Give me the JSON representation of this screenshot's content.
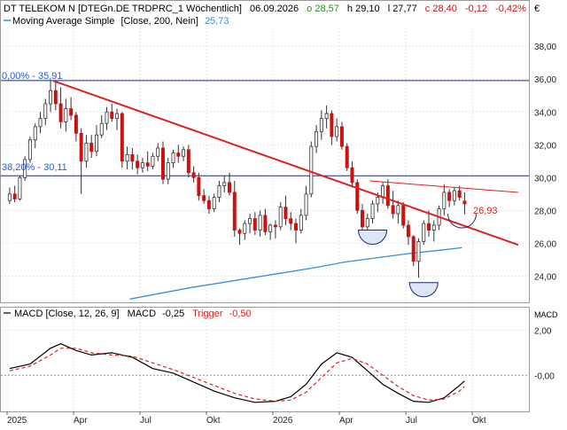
{
  "header": {
    "title": "DT TELEKOM N [DTEGn.DE TRDPRC_1 Wöchentlich]",
    "date": "06.09.2026",
    "open": "o 28,57",
    "high": "h 29,10",
    "low": "l 27,77",
    "close": "c 28,40",
    "change": "-0,12",
    "change_pct": "-0,42%",
    "currency": "€",
    "indicator": "Moving Average Simple",
    "indicator_params": "[Close, 200, Nein]",
    "indicator_value": "25,73"
  },
  "colors": {
    "up": "#2a8a2a",
    "down": "#cc1111",
    "ma": "#3b8fd6",
    "trendline": "#dd2222",
    "hline": "#1f2a6b",
    "macd": "#000000",
    "trigger": "#dd2222",
    "label_blue": "#2a5bd7"
  },
  "chart_data": [
    {
      "type": "candlestick",
      "title": "DT TELEKOM N [DTEGn.DE TRDPRC_1 Wöchentlich]",
      "ylim": [
        22.4,
        39.2
      ],
      "yticks": [
        "24,00",
        "26,00",
        "28,00",
        "30,00",
        "32,00",
        "34,00",
        "36,00",
        "38,00"
      ],
      "ytick_values": [
        24,
        26,
        28,
        30,
        32,
        34,
        36,
        38
      ],
      "xticks": [
        "2025",
        "Apr",
        "Jul",
        "Okt",
        "2026",
        "Apr",
        "Jul",
        "Okt"
      ],
      "xtick_week_index": [
        0,
        13,
        26,
        39,
        52,
        65,
        78,
        91
      ],
      "n_weeks": 100,
      "candles": [
        [
          28.6,
          29.4,
          28.4,
          29.0
        ],
        [
          29.0,
          29.5,
          28.5,
          28.7
        ],
        [
          28.7,
          30.1,
          28.6,
          30.0
        ],
        [
          30.0,
          31.3,
          29.8,
          31.1
        ],
        [
          31.1,
          32.5,
          30.9,
          32.3
        ],
        [
          32.3,
          33.3,
          31.8,
          33.1
        ],
        [
          33.1,
          34.0,
          32.7,
          33.6
        ],
        [
          33.6,
          34.8,
          33.2,
          34.5
        ],
        [
          34.5,
          35.9,
          34.0,
          35.3
        ],
        [
          35.3,
          35.9,
          34.1,
          34.5
        ],
        [
          34.5,
          35.5,
          33.0,
          33.4
        ],
        [
          33.4,
          34.8,
          32.8,
          34.2
        ],
        [
          34.2,
          34.9,
          33.5,
          33.8
        ],
        [
          33.8,
          34.0,
          32.2,
          32.7
        ],
        [
          32.7,
          33.0,
          29.0,
          31.0
        ],
        [
          31.0,
          32.6,
          30.6,
          32.1
        ],
        [
          32.1,
          32.6,
          31.2,
          31.6
        ],
        [
          31.6,
          33.2,
          31.3,
          32.6
        ],
        [
          32.6,
          33.8,
          32.4,
          33.3
        ],
        [
          33.3,
          34.3,
          32.9,
          34.0
        ],
        [
          34.0,
          34.5,
          33.4,
          33.6
        ],
        [
          33.6,
          34.2,
          32.9,
          33.9
        ],
        [
          33.9,
          34.0,
          30.6,
          31.0
        ],
        [
          31.0,
          31.9,
          30.5,
          31.4
        ],
        [
          31.4,
          31.8,
          30.5,
          31.0
        ],
        [
          31.0,
          31.4,
          30.2,
          30.6
        ],
        [
          30.6,
          31.2,
          30.3,
          30.9
        ],
        [
          30.9,
          31.6,
          30.4,
          30.7
        ],
        [
          30.7,
          31.5,
          30.5,
          31.3
        ],
        [
          31.3,
          32.1,
          31.0,
          31.8
        ],
        [
          31.8,
          32.2,
          29.6,
          29.9
        ],
        [
          29.9,
          31.2,
          29.6,
          30.9
        ],
        [
          30.9,
          31.7,
          30.6,
          31.5
        ],
        [
          31.5,
          32.0,
          30.9,
          31.3
        ],
        [
          31.3,
          31.9,
          31.0,
          31.7
        ],
        [
          31.7,
          32.0,
          30.0,
          30.3
        ],
        [
          30.3,
          30.7,
          29.7,
          30.0
        ],
        [
          30.0,
          30.3,
          28.6,
          28.9
        ],
        [
          28.9,
          29.3,
          28.4,
          28.6
        ],
        [
          28.6,
          28.9,
          27.8,
          28.1
        ],
        [
          28.1,
          29.0,
          27.9,
          28.8
        ],
        [
          28.8,
          29.8,
          28.5,
          29.5
        ],
        [
          29.5,
          30.1,
          29.1,
          29.7
        ],
        [
          29.7,
          30.3,
          28.9,
          29.1
        ],
        [
          29.1,
          29.8,
          26.4,
          26.8
        ],
        [
          26.8,
          26.9,
          25.9,
          26.6
        ],
        [
          26.6,
          27.4,
          26.2,
          27.2
        ],
        [
          27.2,
          27.8,
          26.6,
          27.5
        ],
        [
          27.5,
          27.9,
          26.5,
          26.8
        ],
        [
          26.8,
          28.0,
          26.4,
          27.7
        ],
        [
          27.7,
          28.1,
          26.5,
          26.7
        ],
        [
          26.7,
          27.2,
          26.2,
          27.1
        ],
        [
          27.1,
          27.4,
          26.3,
          27.0
        ],
        [
          27.0,
          28.5,
          26.8,
          28.2
        ],
        [
          28.2,
          28.9,
          27.1,
          27.5
        ],
        [
          27.5,
          27.9,
          26.8,
          27.2
        ],
        [
          27.2,
          27.5,
          26.0,
          26.8
        ],
        [
          26.8,
          28.1,
          26.6,
          27.7
        ],
        [
          27.7,
          29.5,
          27.4,
          29.0
        ],
        [
          29.0,
          32.2,
          28.8,
          31.9
        ],
        [
          31.9,
          33.2,
          31.5,
          32.8
        ],
        [
          32.8,
          34.1,
          32.3,
          33.6
        ],
        [
          33.6,
          34.4,
          33.0,
          33.9
        ],
        [
          33.9,
          34.1,
          32.0,
          32.5
        ],
        [
          32.5,
          33.6,
          32.2,
          33.1
        ],
        [
          33.1,
          33.4,
          31.7,
          31.9
        ],
        [
          31.9,
          32.1,
          30.4,
          30.6
        ],
        [
          30.6,
          31.0,
          29.4,
          29.7
        ],
        [
          29.7,
          29.9,
          27.8,
          28.0
        ],
        [
          28.0,
          28.4,
          26.7,
          27.0
        ],
        [
          27.0,
          27.8,
          26.7,
          27.5
        ],
        [
          27.5,
          28.6,
          27.2,
          28.4
        ],
        [
          28.4,
          29.1,
          27.9,
          28.8
        ],
        [
          28.8,
          29.7,
          28.4,
          29.5
        ],
        [
          29.5,
          29.9,
          28.1,
          28.3
        ],
        [
          28.3,
          29.2,
          27.5,
          27.8
        ],
        [
          27.8,
          28.6,
          27.2,
          28.3
        ],
        [
          28.3,
          28.5,
          26.9,
          27.1
        ],
        [
          27.1,
          27.4,
          25.9,
          26.4
        ],
        [
          26.4,
          26.5,
          24.6,
          24.9
        ],
        [
          24.9,
          26.3,
          23.9,
          26.1
        ],
        [
          26.1,
          27.4,
          25.9,
          27.2
        ],
        [
          27.2,
          28.0,
          26.4,
          26.8
        ],
        [
          26.8,
          27.4,
          26.1,
          27.1
        ],
        [
          27.1,
          28.3,
          26.8,
          28.1
        ],
        [
          28.1,
          29.6,
          27.7,
          29.1
        ],
        [
          29.1,
          29.3,
          28.2,
          28.6
        ],
        [
          28.6,
          29.4,
          28.3,
          29.2
        ],
        [
          29.2,
          29.5,
          28.6,
          28.8
        ],
        [
          28.57,
          29.1,
          27.77,
          28.4
        ]
      ],
      "moving_average": {
        "name": "Moving Average Simple",
        "start_week": 24,
        "x": [
          24,
          30,
          36,
          42,
          48,
          54,
          60,
          66,
          72,
          78,
          84,
          89
        ],
        "values": [
          22.6,
          22.95,
          23.3,
          23.6,
          23.9,
          24.2,
          24.5,
          24.85,
          25.1,
          25.35,
          25.55,
          25.73
        ]
      },
      "trendlines": [
        {
          "x": [
            9,
            100
          ],
          "values": [
            35.9,
            25.9
          ]
        },
        {
          "x": [
            71,
            100
          ],
          "values": [
            29.8,
            29.1
          ]
        }
      ],
      "hlines": [
        {
          "value": 35.91,
          "label": "0,00% - 35,91"
        },
        {
          "value": 30.11,
          "label": "38,20% - 30,11"
        }
      ],
      "annotations": {
        "trend_label": "26,93",
        "trend_label_value": 26.93,
        "arcs": [
          {
            "center_week": 71.5,
            "value": 26.8,
            "filled": true
          },
          {
            "center_week": 81.5,
            "value": 23.6,
            "filled": true
          },
          {
            "center_week": 89,
            "value": 27.8,
            "filled": false
          }
        ]
      }
    },
    {
      "type": "line",
      "title": "MACD [Close, 12, 26, 9]",
      "ylim": [
        -1.6,
        3.0
      ],
      "yticks": [
        "-0,00",
        "2,00"
      ],
      "ytick_values": [
        0,
        2
      ],
      "side_label": "MACD",
      "series": [
        {
          "name": "MACD",
          "value": "-0,25",
          "x": [
            0,
            4,
            8,
            10,
            13,
            16,
            20,
            24,
            28,
            32,
            36,
            40,
            44,
            48,
            52,
            55,
            58,
            61,
            64,
            67,
            70,
            73,
            76,
            79,
            82,
            85,
            88,
            89
          ],
          "values": [
            0.3,
            0.5,
            1.2,
            1.4,
            1.1,
            0.9,
            1.0,
            0.8,
            0.3,
            0.1,
            -0.3,
            -0.7,
            -1.0,
            -1.2,
            -1.15,
            -0.95,
            -0.4,
            0.5,
            1.0,
            0.8,
            0.2,
            -0.4,
            -0.8,
            -1.15,
            -1.2,
            -1.0,
            -0.45,
            -0.25
          ]
        },
        {
          "name": "Trigger",
          "value": "-0,50",
          "x": [
            0,
            4,
            8,
            10,
            13,
            16,
            20,
            24,
            28,
            32,
            36,
            40,
            44,
            48,
            52,
            55,
            58,
            61,
            64,
            67,
            70,
            73,
            76,
            79,
            82,
            85,
            88,
            89
          ],
          "values": [
            0.2,
            0.4,
            0.9,
            1.2,
            1.2,
            1.0,
            0.9,
            0.85,
            0.55,
            0.25,
            -0.1,
            -0.45,
            -0.8,
            -1.05,
            -1.15,
            -1.1,
            -0.75,
            -0.1,
            0.55,
            0.75,
            0.5,
            0.0,
            -0.5,
            -0.9,
            -1.1,
            -1.05,
            -0.7,
            -0.5
          ]
        }
      ]
    }
  ]
}
